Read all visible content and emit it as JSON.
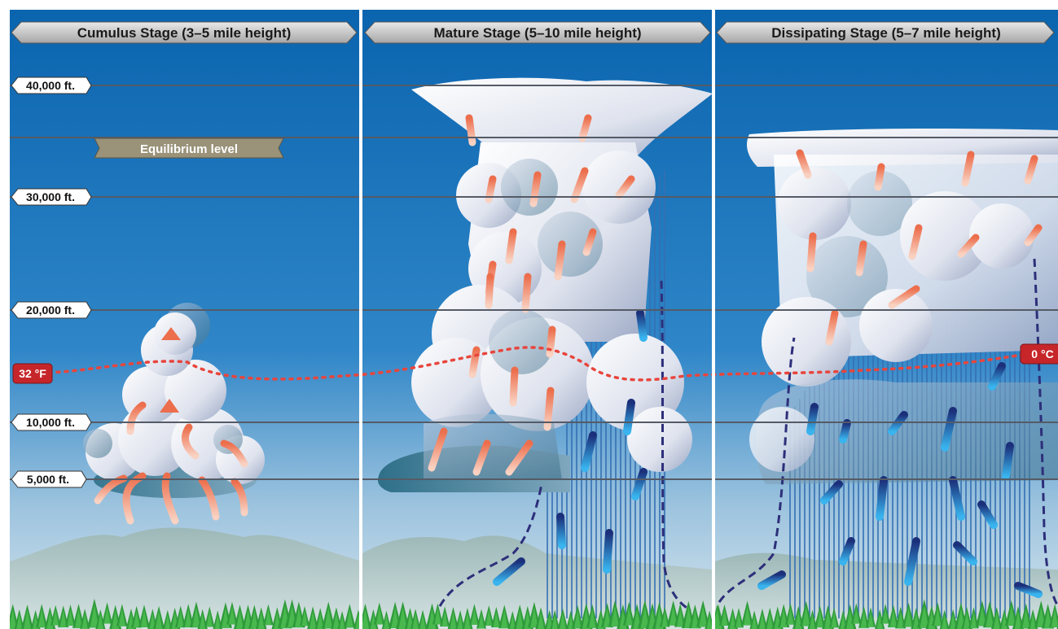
{
  "panels": [
    {
      "title": "Cumulus Stage (3–5 mile height)"
    },
    {
      "title": "Mature Stage (5–10 mile height)"
    },
    {
      "title": "Dissipating Stage (5–7 mile height)"
    }
  ],
  "altitudes": [
    "40,000 ft.",
    "30,000 ft.",
    "20,000 ft.",
    "10,000 ft.",
    "5,000 ft."
  ],
  "equilibrium_label": "Equilibrium level",
  "freezing": {
    "left": "32 °F",
    "right": "0 °C"
  },
  "colors": {
    "sky_top": "#0a66b0",
    "sky_bottom": "#cfe0ec",
    "updraft": "#f07a5a",
    "downdraft": "#1e5aa8",
    "freezing_line": "#e8453c",
    "rain": "#2f6fb0",
    "trees": "#2f9a3a"
  }
}
